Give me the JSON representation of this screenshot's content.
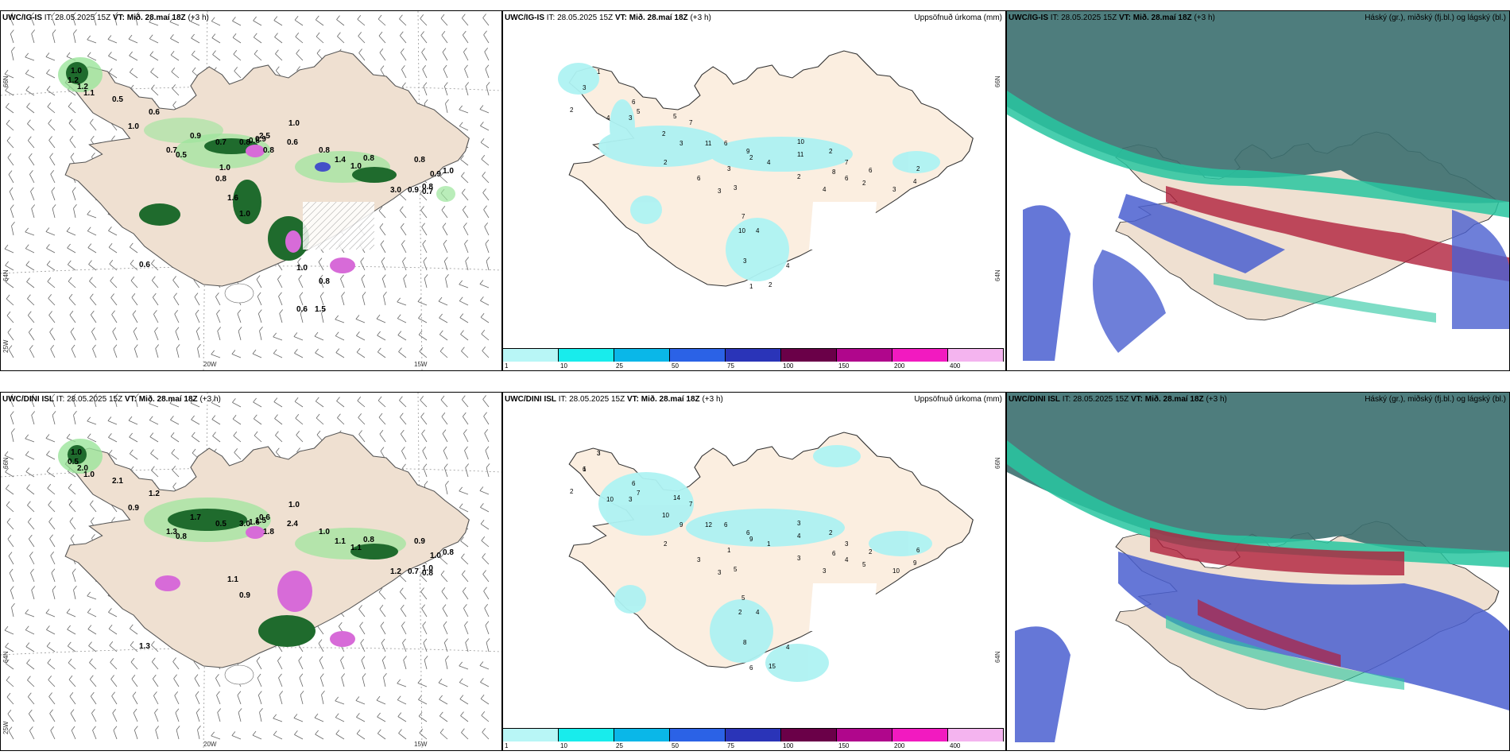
{
  "rows": [
    {
      "model": "UWC/IG-IS",
      "it_label": "IT:",
      "it_value": "28.05.2025 15Z",
      "vt_label": "VT:",
      "vt_value": "Mið. 28.maí 18Z",
      "lead": "(+3 h)",
      "precip_title": "Uppsöfnuð úrkoma (mm)",
      "cloud_title": "Háský (gr.), miðský (fj.bl.) og lágský (bl.)",
      "temp_labels": [
        "1.0",
        "1.2",
        "1.2",
        "1.1",
        "0.5",
        "0.6",
        "1.0",
        "0.9",
        "0.7",
        "0.5",
        "0.7",
        "0.8",
        "0.9",
        "0.8",
        "2.5",
        "0.8",
        "1.4",
        "1.0",
        "0.8",
        "0.8",
        "0.9",
        "1.0",
        "0.8",
        "3.0",
        "0.9",
        "0.7",
        "0.6",
        "1.0",
        "1.6",
        "0.6",
        "1.0",
        "0.8",
        "1.0",
        "0.8",
        "1.0",
        "0.8",
        "0.6",
        "1.5"
      ],
      "precip_labels": [
        "1",
        "3",
        "2",
        "6",
        "5",
        "3",
        "4",
        "2",
        "5",
        "7",
        "3",
        "11",
        "6",
        "9",
        "3",
        "2",
        "6",
        "2",
        "3",
        "3",
        "4",
        "10",
        "11",
        "8",
        "7",
        "2",
        "2",
        "4",
        "6",
        "2",
        "6",
        "3",
        "4",
        "2",
        "7",
        "10",
        "4",
        "3",
        "1",
        "2",
        "4"
      ]
    },
    {
      "model": "UWC/DINI ISL",
      "it_label": "IT:",
      "it_value": "28.05.2025 15Z",
      "vt_label": "VT:",
      "vt_value": "Mið. 28.maí 18Z",
      "lead": "(+3 h)",
      "precip_title": "Uppsöfnuð úrkoma (mm)",
      "cloud_title": "Háský (gr.), miðský (fj.bl.) og lágský (bl.)",
      "temp_labels": [
        "1.0",
        "0.5",
        "2.0",
        "1.0",
        "2.1",
        "1.2",
        "0.9",
        "1.7",
        "1.3",
        "0.8",
        "0.5",
        "3.0",
        "1.5",
        "1.8",
        "0.6",
        "1.0",
        "1.1",
        "1.1",
        "0.8",
        "0.9",
        "1.0",
        "0.8",
        "1.0",
        "1.2",
        "0.7",
        "0.8",
        "1.3",
        "0.9",
        "1.1",
        "2.4",
        "1.0",
        "1.6"
      ],
      "precip_labels": [
        "3",
        "6",
        "2",
        "6",
        "7",
        "3",
        "10",
        "10",
        "14",
        "7",
        "9",
        "12",
        "6",
        "6",
        "1",
        "9",
        "3",
        "2",
        "3",
        "5",
        "1",
        "3",
        "4",
        "6",
        "3",
        "2",
        "3",
        "3",
        "4",
        "5",
        "2",
        "10",
        "9",
        "6",
        "5",
        "2",
        "4",
        "8",
        "6",
        "15",
        "4",
        "3",
        "1"
      ]
    }
  ],
  "colorbar": {
    "ticks": [
      "1",
      "10",
      "25",
      "50",
      "75",
      "100",
      "150",
      "200",
      "400"
    ],
    "colors": [
      "#b8f6f6",
      "#18ecec",
      "#0ab7e8",
      "#2b62e6",
      "#2a34b8",
      "#6a0048",
      "#b0068c",
      "#f21ac0",
      "#f4b4ef"
    ]
  },
  "axes": {
    "lon_labels": [
      "20W",
      "15W"
    ],
    "lat_labels": [
      "66N",
      "64N"
    ],
    "corner_label": "25W"
  },
  "colors": {
    "land": "#f1e2d3",
    "precip_land": "#fbeee0",
    "cloud_high": "#3b6f6f",
    "cloud_mid": "#28c6a0",
    "cloud_low": "#4a5fd0",
    "cloud_red": "#b0203c"
  }
}
